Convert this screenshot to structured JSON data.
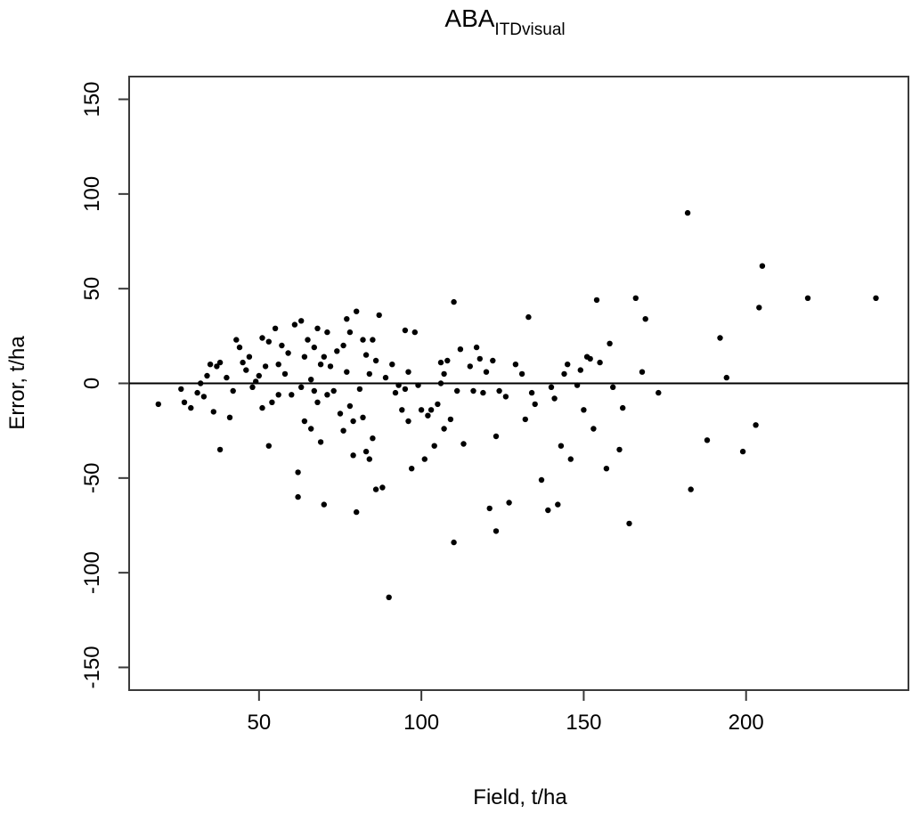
{
  "chart_data": {
    "type": "scatter",
    "title": "ABA",
    "title_subscript": "ITDvisual",
    "xlabel": "Field, t/ha",
    "ylabel": "Error, t/ha",
    "xlim": [
      10,
      250
    ],
    "ylim": [
      -162,
      162
    ],
    "xticks": [
      50,
      100,
      150,
      200
    ],
    "yticks": [
      -150,
      -100,
      -50,
      0,
      50,
      100,
      150
    ],
    "reference_line_y": 0,
    "grid": false,
    "legend": "none",
    "marker_color": "#000000",
    "points": [
      [
        19,
        -11
      ],
      [
        26,
        -3
      ],
      [
        27,
        -10
      ],
      [
        29,
        -13
      ],
      [
        31,
        -5
      ],
      [
        32,
        0
      ],
      [
        33,
        -7
      ],
      [
        34,
        4
      ],
      [
        35,
        10
      ],
      [
        36,
        -15
      ],
      [
        37,
        9
      ],
      [
        38,
        11
      ],
      [
        38,
        -35
      ],
      [
        40,
        3
      ],
      [
        41,
        -18
      ],
      [
        42,
        -4
      ],
      [
        43,
        23
      ],
      [
        44,
        19
      ],
      [
        45,
        11
      ],
      [
        46,
        7
      ],
      [
        47,
        14
      ],
      [
        48,
        -2
      ],
      [
        49,
        1
      ],
      [
        50,
        4
      ],
      [
        51,
        24
      ],
      [
        51,
        -13
      ],
      [
        52,
        9
      ],
      [
        53,
        22
      ],
      [
        53,
        -33
      ],
      [
        54,
        -10
      ],
      [
        55,
        29
      ],
      [
        56,
        10
      ],
      [
        56,
        -6
      ],
      [
        57,
        20
      ],
      [
        58,
        5
      ],
      [
        59,
        16
      ],
      [
        60,
        -6
      ],
      [
        61,
        31
      ],
      [
        62,
        -47
      ],
      [
        62,
        -60
      ],
      [
        63,
        33
      ],
      [
        63,
        -2
      ],
      [
        64,
        14
      ],
      [
        64,
        -20
      ],
      [
        65,
        23
      ],
      [
        66,
        2
      ],
      [
        66,
        -24
      ],
      [
        67,
        19
      ],
      [
        67,
        -4
      ],
      [
        68,
        29
      ],
      [
        68,
        -10
      ],
      [
        69,
        10
      ],
      [
        69,
        -31
      ],
      [
        70,
        14
      ],
      [
        70,
        -64
      ],
      [
        71,
        27
      ],
      [
        71,
        -6
      ],
      [
        72,
        9
      ],
      [
        73,
        -4
      ],
      [
        74,
        17
      ],
      [
        75,
        -16
      ],
      [
        76,
        20
      ],
      [
        76,
        -25
      ],
      [
        77,
        34
      ],
      [
        77,
        6
      ],
      [
        78,
        27
      ],
      [
        78,
        -12
      ],
      [
        79,
        -20
      ],
      [
        79,
        -38
      ],
      [
        80,
        38
      ],
      [
        80,
        -68
      ],
      [
        81,
        -3
      ],
      [
        82,
        23
      ],
      [
        82,
        -18
      ],
      [
        83,
        15
      ],
      [
        83,
        -36
      ],
      [
        84,
        5
      ],
      [
        84,
        -40
      ],
      [
        85,
        23
      ],
      [
        85,
        -29
      ],
      [
        86,
        12
      ],
      [
        86,
        -56
      ],
      [
        87,
        36
      ],
      [
        88,
        -55
      ],
      [
        89,
        3
      ],
      [
        90,
        -113
      ],
      [
        91,
        10
      ],
      [
        92,
        -5
      ],
      [
        93,
        -1
      ],
      [
        94,
        -14
      ],
      [
        95,
        28
      ],
      [
        95,
        -3
      ],
      [
        96,
        6
      ],
      [
        96,
        -20
      ],
      [
        97,
        -45
      ],
      [
        98,
        27
      ],
      [
        99,
        -1
      ],
      [
        100,
        -14
      ],
      [
        101,
        -40
      ],
      [
        102,
        -17
      ],
      [
        103,
        -14
      ],
      [
        104,
        -33
      ],
      [
        105,
        -11
      ],
      [
        106,
        11
      ],
      [
        106,
        0
      ],
      [
        107,
        5
      ],
      [
        107,
        -24
      ],
      [
        108,
        12
      ],
      [
        109,
        -19
      ],
      [
        110,
        43
      ],
      [
        110,
        -84
      ],
      [
        111,
        -4
      ],
      [
        112,
        18
      ],
      [
        113,
        -32
      ],
      [
        115,
        9
      ],
      [
        116,
        -4
      ],
      [
        117,
        19
      ],
      [
        118,
        13
      ],
      [
        119,
        -5
      ],
      [
        120,
        6
      ],
      [
        121,
        -66
      ],
      [
        122,
        12
      ],
      [
        123,
        -28
      ],
      [
        123,
        -78
      ],
      [
        124,
        -4
      ],
      [
        126,
        -7
      ],
      [
        127,
        -63
      ],
      [
        129,
        10
      ],
      [
        131,
        5
      ],
      [
        132,
        -19
      ],
      [
        133,
        35
      ],
      [
        134,
        -5
      ],
      [
        135,
        -11
      ],
      [
        137,
        -51
      ],
      [
        139,
        -67
      ],
      [
        140,
        -2
      ],
      [
        141,
        -8
      ],
      [
        142,
        -64
      ],
      [
        143,
        -33
      ],
      [
        144,
        5
      ],
      [
        145,
        10
      ],
      [
        146,
        -40
      ],
      [
        148,
        -1
      ],
      [
        149,
        7
      ],
      [
        150,
        -14
      ],
      [
        151,
        14
      ],
      [
        152,
        13
      ],
      [
        153,
        -24
      ],
      [
        154,
        44
      ],
      [
        155,
        11
      ],
      [
        157,
        -45
      ],
      [
        158,
        21
      ],
      [
        159,
        -2
      ],
      [
        161,
        -35
      ],
      [
        162,
        -13
      ],
      [
        164,
        -74
      ],
      [
        166,
        45
      ],
      [
        168,
        6
      ],
      [
        169,
        34
      ],
      [
        173,
        -5
      ],
      [
        182,
        90
      ],
      [
        183,
        -56
      ],
      [
        188,
        -30
      ],
      [
        192,
        24
      ],
      [
        194,
        3
      ],
      [
        199,
        -36
      ],
      [
        203,
        -22
      ],
      [
        204,
        40
      ],
      [
        205,
        62
      ],
      [
        219,
        45
      ],
      [
        240,
        45
      ]
    ]
  }
}
